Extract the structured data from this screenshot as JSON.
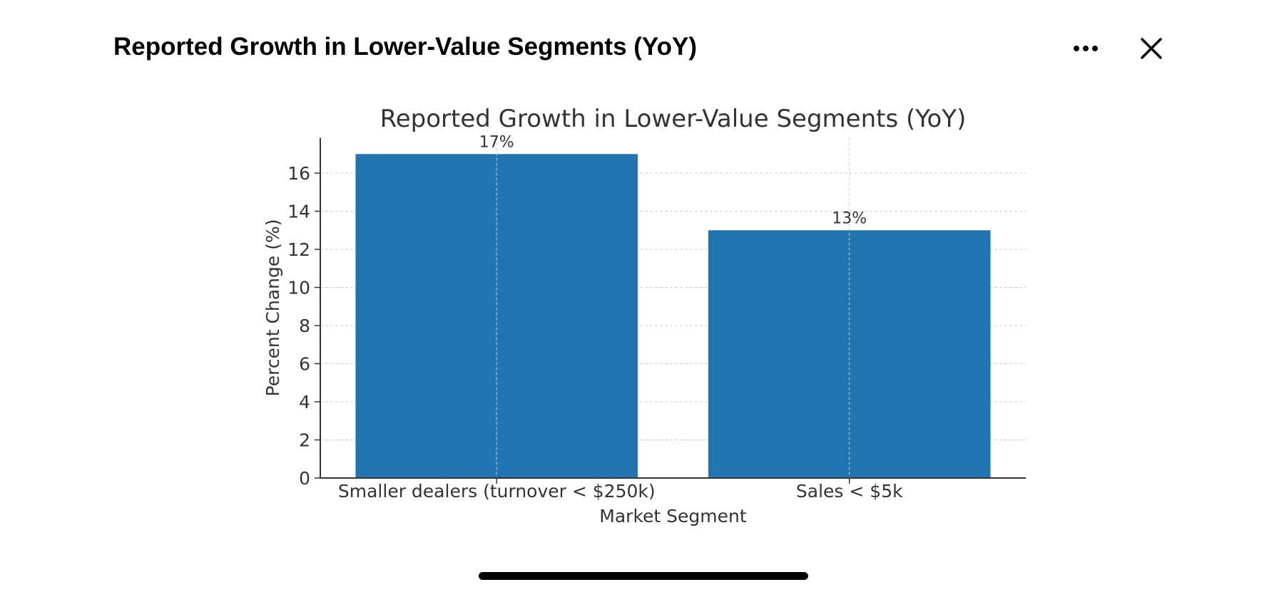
{
  "header": {
    "title": "Reported Growth in Lower-Value Segments (YoY)",
    "more_icon": "ellipsis-icon",
    "close_icon": "close-icon"
  },
  "chart_data": {
    "type": "bar",
    "title": "Reported Growth in Lower-Value Segments (YoY)",
    "xlabel": "Market Segment",
    "ylabel": "Percent Change (%)",
    "categories": [
      "Smaller dealers (turnover < $250k)",
      "Sales < $5k"
    ],
    "values": [
      17,
      13
    ],
    "data_labels": [
      "17%",
      "13%"
    ],
    "yticks": [
      0,
      2,
      4,
      6,
      8,
      10,
      12,
      14,
      16
    ],
    "ylim": [
      0,
      17.85
    ],
    "grid": true,
    "bar_color": "#2176b2"
  }
}
